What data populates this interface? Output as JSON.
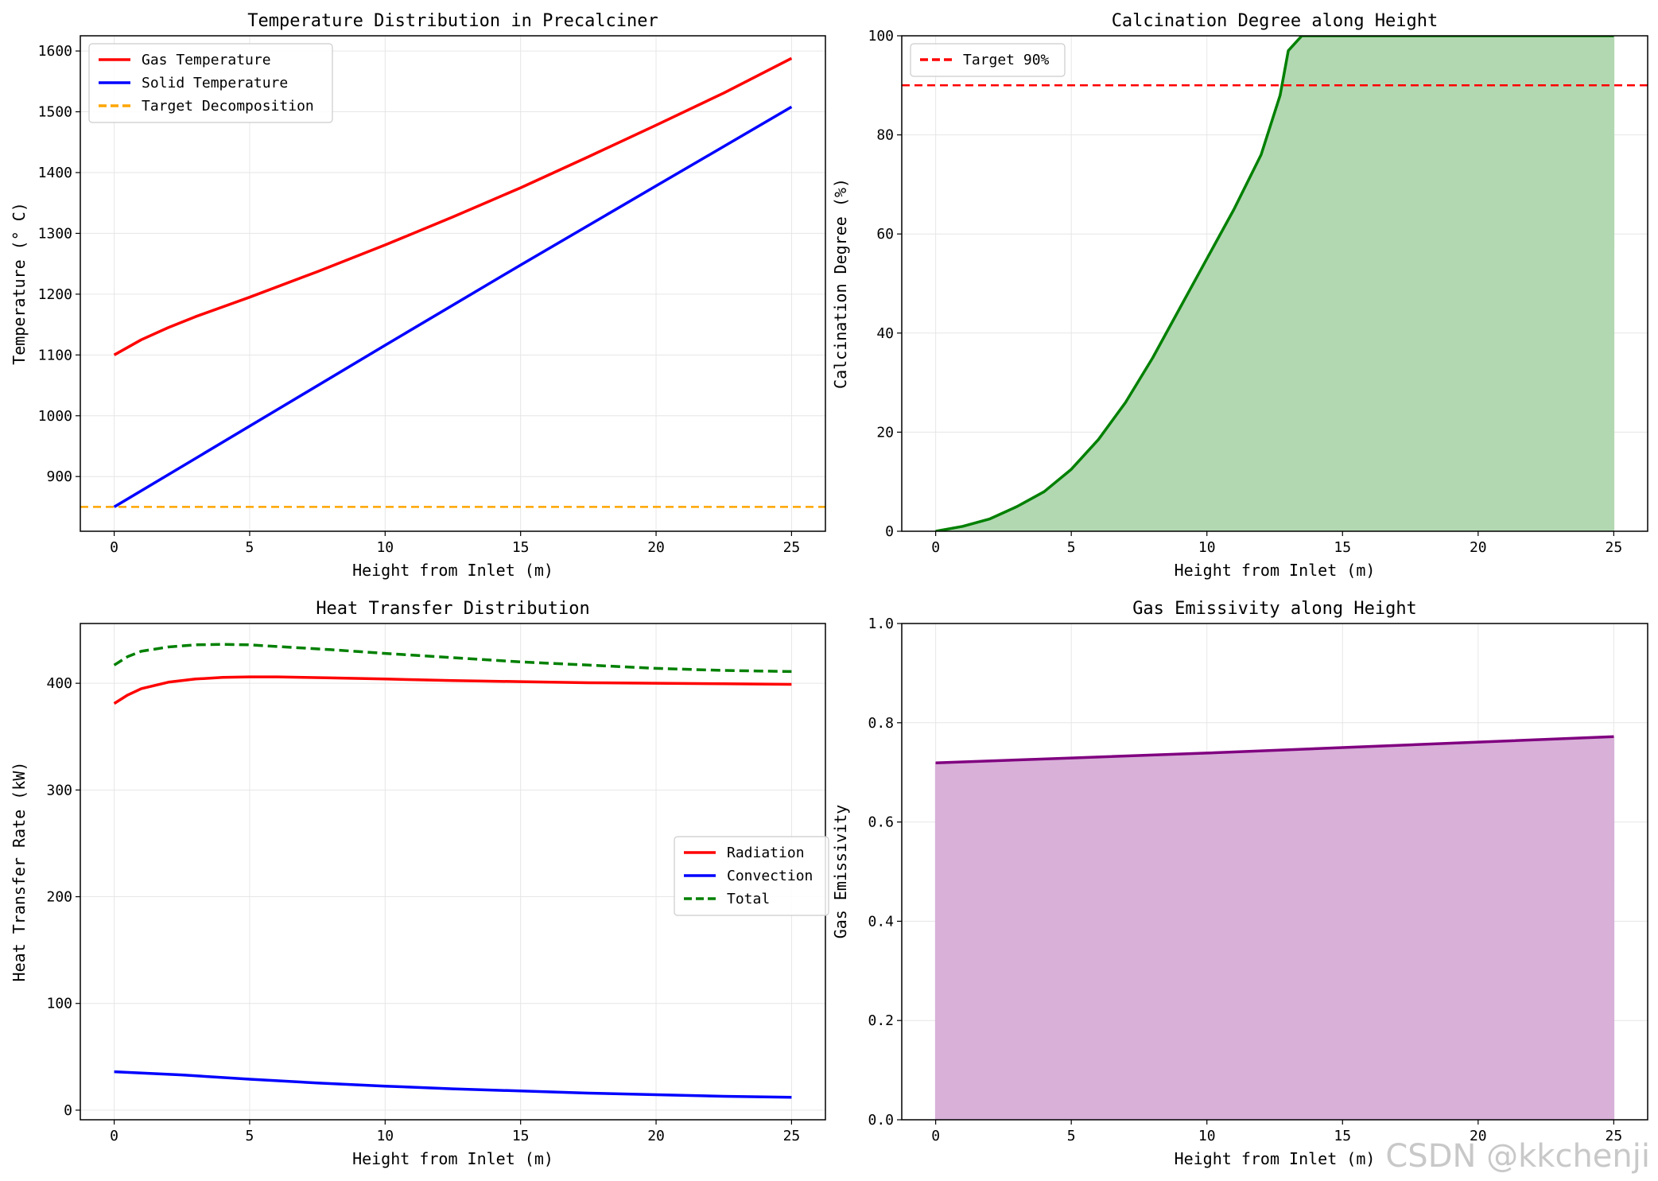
{
  "watermark": "CSDN @kkchenji",
  "chart_data": [
    {
      "type": "line",
      "title": "Temperature Distribution in Precalciner",
      "xlabel": "Height from Inlet (m)",
      "ylabel": "Temperature (° C)",
      "xlim": [
        -1.25,
        26.25
      ],
      "ylim": [
        810,
        1625
      ],
      "xticks": [
        0,
        5,
        10,
        15,
        20,
        25
      ],
      "yticks": [
        900,
        1000,
        1100,
        1200,
        1300,
        1400,
        1500,
        1600
      ],
      "grid": true,
      "legend": "upper-left",
      "series": [
        {
          "name": "Gas Temperature",
          "color": "#ff0000",
          "style": "solid",
          "x": [
            0,
            1,
            2,
            3,
            5,
            7.5,
            10,
            12.5,
            15,
            17.5,
            20,
            22.5,
            25
          ],
          "y": [
            1100,
            1125,
            1145,
            1163,
            1195,
            1237,
            1281,
            1327,
            1375,
            1426,
            1478,
            1531,
            1588
          ]
        },
        {
          "name": "Solid Temperature",
          "color": "#0000ff",
          "style": "solid",
          "x": [
            0,
            5,
            10,
            15,
            20,
            25
          ],
          "y": [
            850,
            983,
            1116,
            1248,
            1378,
            1508
          ]
        },
        {
          "name": "Target Decomposition",
          "color": "#ffa500",
          "style": "dashed",
          "hline": 850
        }
      ]
    },
    {
      "type": "area",
      "title": "Calcination Degree along Height",
      "xlabel": "Height from Inlet (m)",
      "ylabel": "Calcination Degree (%)",
      "xlim": [
        -1.25,
        26.25
      ],
      "ylim": [
        0,
        100
      ],
      "xticks": [
        0,
        5,
        10,
        15,
        20,
        25
      ],
      "yticks": [
        0,
        20,
        40,
        60,
        80,
        100
      ],
      "grid": true,
      "legend": "upper-left",
      "series": [
        {
          "name": "",
          "color": "#008000",
          "fill": "#b2d8b2",
          "style": "solid",
          "x": [
            0,
            1,
            2,
            3,
            4,
            5,
            6,
            7,
            8,
            9,
            10,
            11,
            12,
            12.7,
            13.0,
            13.5,
            14,
            16,
            18,
            20,
            22,
            24,
            25
          ],
          "y": [
            0,
            1,
            2.5,
            5,
            8,
            12.5,
            18.5,
            26,
            35,
            45,
            55,
            65,
            76,
            88,
            97,
            100,
            100,
            100,
            100,
            100,
            100,
            100,
            100
          ]
        },
        {
          "name": "Target 90%",
          "color": "#ff0000",
          "style": "dashed",
          "hline": 90
        }
      ]
    },
    {
      "type": "line",
      "title": "Heat Transfer Distribution",
      "xlabel": "Height from Inlet (m)",
      "ylabel": "Heat Transfer Rate (kW)",
      "xlim": [
        -1.25,
        26.25
      ],
      "ylim": [
        -9,
        456
      ],
      "xticks": [
        0,
        5,
        10,
        15,
        20,
        25
      ],
      "yticks": [
        0,
        100,
        200,
        300,
        400
      ],
      "grid": true,
      "legend": "center-right",
      "series": [
        {
          "name": "Radiation",
          "color": "#ff0000",
          "style": "solid",
          "x": [
            0,
            0.5,
            1,
            2,
            3,
            4,
            5,
            6,
            7,
            8,
            10,
            12.5,
            15,
            17.5,
            20,
            22.5,
            25
          ],
          "y": [
            381,
            389,
            395,
            401,
            404,
            405.5,
            406,
            406,
            405.5,
            405,
            404,
            402.5,
            401.5,
            400.5,
            400,
            399.5,
            399
          ]
        },
        {
          "name": "Convection",
          "color": "#0000ff",
          "style": "solid",
          "x": [
            0,
            2.5,
            5,
            7.5,
            10,
            12.5,
            15,
            17.5,
            20,
            22.5,
            25
          ],
          "y": [
            36,
            33,
            29,
            25.5,
            22.5,
            20,
            18,
            16,
            14.5,
            13,
            12
          ]
        },
        {
          "name": "Total",
          "color": "#008000",
          "style": "dashed",
          "x": [
            0,
            0.5,
            1,
            2,
            3,
            4,
            5,
            6,
            7,
            8,
            10,
            12.5,
            15,
            17.5,
            20,
            22.5,
            25
          ],
          "y": [
            417,
            425,
            430,
            434,
            436,
            436.5,
            436,
            434.5,
            433,
            431.5,
            428,
            424,
            420,
            417,
            414,
            412,
            411
          ]
        }
      ]
    },
    {
      "type": "area",
      "title": "Gas Emissivity along Height",
      "xlabel": "Height from Inlet (m)",
      "ylabel": "Gas Emissivity",
      "xlim": [
        -1.25,
        26.25
      ],
      "ylim": [
        0,
        1.0
      ],
      "xticks": [
        0,
        5,
        10,
        15,
        20,
        25
      ],
      "yticks": [
        0.0,
        0.2,
        0.4,
        0.6,
        0.8,
        1.0
      ],
      "ytick_labels": [
        "0.0",
        "0.2",
        "0.4",
        "0.6",
        "0.8",
        "1.0"
      ],
      "grid": true,
      "series": [
        {
          "name": "",
          "color": "#800080",
          "fill": "#d8b0d8",
          "style": "solid",
          "x": [
            0,
            5,
            10,
            15,
            20,
            25
          ],
          "y": [
            0.719,
            0.729,
            0.739,
            0.75,
            0.761,
            0.772
          ]
        }
      ]
    }
  ]
}
